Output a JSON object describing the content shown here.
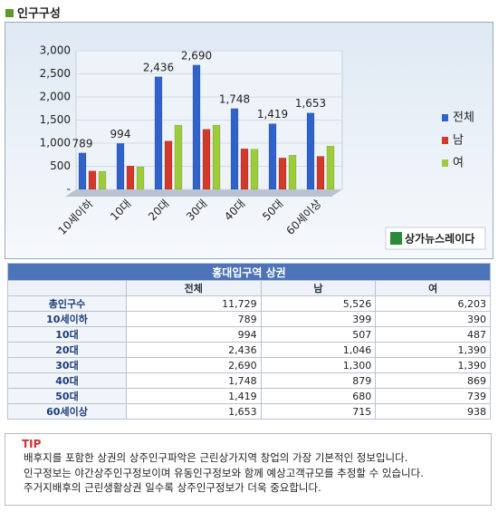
{
  "header": {
    "title": "인구구성"
  },
  "chart_data": {
    "type": "bar",
    "categories": [
      "10세이하",
      "10대",
      "20대",
      "30대",
      "40대",
      "50대",
      "60세이상"
    ],
    "series": [
      {
        "name": "전체",
        "color": "#2f63c9",
        "values": [
          789,
          994,
          2436,
          2690,
          1748,
          1419,
          1653
        ],
        "value_labels": [
          "789",
          "994",
          "2,436",
          "2,690",
          "1,748",
          "1,419",
          "1,653"
        ]
      },
      {
        "name": "남",
        "color": "#d2392b",
        "values": [
          399,
          507,
          1046,
          1300,
          879,
          680,
          715
        ]
      },
      {
        "name": "여",
        "color": "#9ccc3a",
        "values": [
          390,
          487,
          1390,
          1390,
          869,
          739,
          938
        ]
      }
    ],
    "ylim": [
      0,
      3000
    ],
    "yticks": [
      {
        "value": 0,
        "label": "-"
      },
      500,
      {
        "value": 1000,
        "label": "1,000"
      },
      {
        "value": 1500,
        "label": "1,500"
      },
      {
        "value": 2000,
        "label": "2,000"
      },
      {
        "value": 2500,
        "label": "2,500"
      },
      {
        "value": 3000,
        "label": "3,000"
      }
    ],
    "legend": "right"
  },
  "watermark": "상가뉴스레이다",
  "table": {
    "title": "홍대입구역 상권",
    "header": [
      "전체",
      "남",
      "여"
    ],
    "rows": [
      [
        "총인구수",
        "11,729",
        "5,526",
        "6,203"
      ],
      [
        "10세이하",
        "789",
        "399",
        "390"
      ],
      [
        "10대",
        "994",
        "507",
        "487"
      ],
      [
        "20대",
        "2,436",
        "1,046",
        "1,390"
      ],
      [
        "30대",
        "2,690",
        "1,300",
        "1,390"
      ],
      [
        "40대",
        "1,748",
        "879",
        "869"
      ],
      [
        "50대",
        "1,419",
        "680",
        "739"
      ],
      [
        "60세이상",
        "1,653",
        "715",
        "938"
      ]
    ]
  },
  "tip": {
    "label": "TIP",
    "lines": [
      "배후지를 포함한 상권의 상주인구파악은 근린상가지역 창업의 가장 기본적인 정보입니다.",
      "인구정보는 야간상주인구정보이며 유동인구정보와 함께 예상고객규모를 추정할 수 있습니다.",
      "주거지배후의 근린생활상권 일수록 상주인구정보가 더욱 중요합니다."
    ]
  }
}
